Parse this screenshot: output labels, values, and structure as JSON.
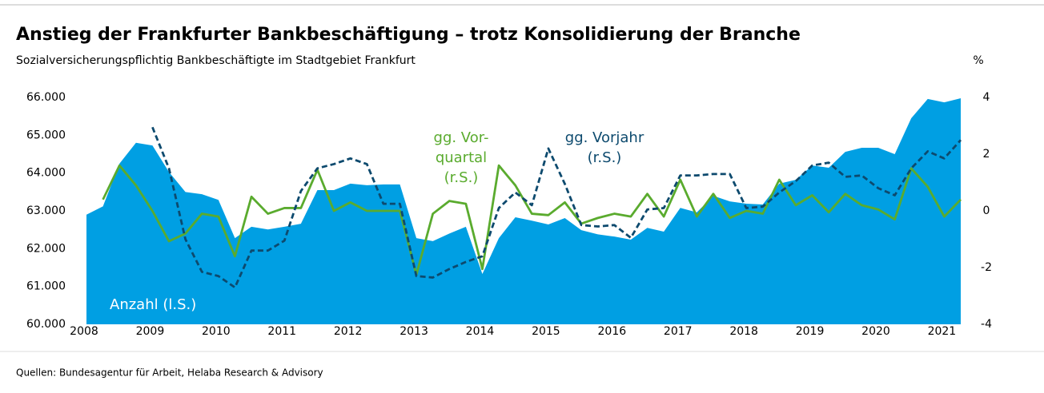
{
  "chart_data": {
    "type": "area_line",
    "title": "Anstieg der Frankfurter Bankbeschäftigung – trotz Konsolidierung der Branche",
    "subtitle": "Sozialversicherungspflichtig Bankbeschäftigte im Stadtgebiet Frankfurt",
    "y2label": "%",
    "source": "Quellen: Bundesagentur für Arbeit, Helaba Research & Advisory",
    "x": [
      2008,
      2008.25,
      2008.5,
      2008.75,
      2009,
      2009.25,
      2009.5,
      2009.75,
      2010,
      2010.25,
      2010.5,
      2010.75,
      2011,
      2011.25,
      2011.5,
      2011.75,
      2012,
      2012.25,
      2012.5,
      2012.75,
      2013,
      2013.25,
      2013.5,
      2013.75,
      2014,
      2014.25,
      2014.5,
      2014.75,
      2015,
      2015.25,
      2015.5,
      2015.75,
      2016,
      2016.25,
      2016.5,
      2016.75,
      2017,
      2017.25,
      2017.5,
      2017.75,
      2018,
      2018.25,
      2018.5,
      2018.75,
      2019,
      2019.25,
      2019.5,
      2019.75,
      2020,
      2020.25,
      2020.5,
      2020.75,
      2021,
      2021.25
    ],
    "series": [
      {
        "name": "Anzahl (l.S.)",
        "kind": "area",
        "color": "#009fe3",
        "axis": "y",
        "values": [
          62900,
          63120,
          64250,
          64800,
          64730,
          64030,
          63500,
          63440,
          63290,
          62280,
          62580,
          62510,
          62580,
          62660,
          63550,
          63550,
          63720,
          63680,
          63700,
          63700,
          62280,
          62200,
          62400,
          62580,
          61330,
          62280,
          62830,
          62740,
          62640,
          62810,
          62490,
          62380,
          62320,
          62240,
          62550,
          62450,
          63080,
          62960,
          63400,
          63250,
          63190,
          63170,
          63720,
          63820,
          64200,
          64140,
          64560,
          64670,
          64670,
          64500,
          65450,
          65960,
          65870,
          65980
        ]
      },
      {
        "name": [
          "gg. Vor-",
          "quartal",
          "(r.S.)"
        ],
        "kind": "line",
        "color": "#5aab2e",
        "axis": "y2",
        "values": [
          null,
          0.4,
          1.6,
          0.9,
          0.0,
          -1.07,
          -0.8,
          -0.1,
          -0.2,
          -1.6,
          0.5,
          -0.1,
          0.1,
          0.1,
          1.45,
          0.0,
          0.3,
          0.0,
          0.0,
          0.0,
          -2.25,
          -0.1,
          0.35,
          0.25,
          -2.05,
          1.6,
          0.9,
          -0.1,
          -0.15,
          0.3,
          -0.45,
          -0.25,
          -0.1,
          -0.2,
          0.6,
          -0.2,
          1.1,
          -0.2,
          0.6,
          -0.25,
          0.0,
          -0.1,
          1.1,
          0.2,
          0.55,
          -0.05,
          0.6,
          0.2,
          0.05,
          -0.3,
          1.5,
          0.85,
          -0.2,
          0.4
        ]
      },
      {
        "name": [
          "gg. Vorjahr",
          "(r.S.)"
        ],
        "kind": "dashed",
        "color": "#0d4a6e",
        "axis": "y2",
        "values": [
          null,
          null,
          null,
          null,
          2.95,
          1.5,
          -1.0,
          -2.15,
          -2.3,
          -2.7,
          -1.4,
          -1.4,
          -1.05,
          0.7,
          1.5,
          1.65,
          1.85,
          1.65,
          0.25,
          0.25,
          -2.3,
          -2.35,
          -2.05,
          -1.8,
          -1.6,
          0.1,
          0.65,
          0.2,
          2.2,
          0.95,
          -0.5,
          -0.55,
          -0.5,
          -0.95,
          0.05,
          0.1,
          1.25,
          1.25,
          1.3,
          1.3,
          0.1,
          0.15,
          0.65,
          1.05,
          1.6,
          1.7,
          1.2,
          1.25,
          0.8,
          0.55,
          1.5,
          2.1,
          1.85,
          2.5
        ]
      }
    ],
    "xlim": [
      2008,
      2021.25
    ],
    "xticks": [
      2008,
      2009,
      2010,
      2011,
      2012,
      2013,
      2014,
      2015,
      2016,
      2017,
      2018,
      2019,
      2020,
      2021
    ],
    "ylim": [
      60000,
      66000
    ],
    "yticks": [
      {
        "value": 60000,
        "label": "60.000"
      },
      {
        "value": 61000,
        "label": "61.000"
      },
      {
        "value": 62000,
        "label": "62.000"
      },
      {
        "value": 63000,
        "label": "63.000"
      },
      {
        "value": 64000,
        "label": "64.000"
      },
      {
        "value": 65000,
        "label": "65.000"
      },
      {
        "value": 66000,
        "label": "66.000"
      }
    ],
    "y2lim": [
      -4,
      4
    ],
    "y2ticks": [
      -4,
      -2,
      0,
      2,
      4
    ]
  }
}
